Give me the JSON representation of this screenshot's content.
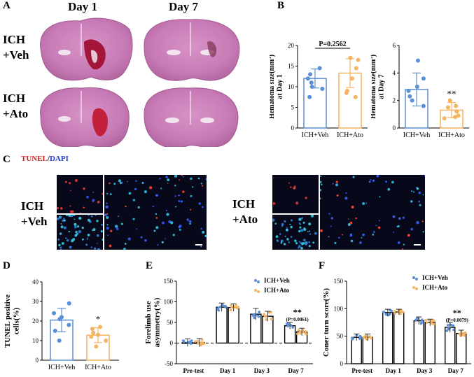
{
  "panels": {
    "A": {
      "label": "A",
      "col_titles": [
        "Day 1",
        "Day 7"
      ],
      "row_labels": [
        [
          "ICH",
          "+Veh"
        ],
        [
          "ICH",
          "+Ato"
        ]
      ]
    },
    "B": {
      "label": "B"
    },
    "C": {
      "label": "C",
      "stain_tunel": "TUNEL",
      "stain_sep": "/",
      "stain_dapi": "DAPI",
      "group_veh": [
        "ICH",
        "+Veh"
      ],
      "group_ato": [
        "ICH",
        "+Ato"
      ]
    },
    "D": {
      "label": "D"
    },
    "E": {
      "label": "E"
    },
    "F": {
      "label": "F"
    }
  },
  "colors": {
    "veh": "#5b8fd6",
    "ato": "#f5b461",
    "tunel_red": "#d21e1e",
    "dapi_blue": "#1e3cd2"
  },
  "chart_data": [
    {
      "id": "B1",
      "type": "bar",
      "ylabel": "Hematoma size(mm³) at Day 1",
      "ylabel_lines": [
        "Hematoma size(mm",
        "3",
        ")",
        "at Day 1"
      ],
      "categories": [
        "ICH+Veh",
        "ICH+Ato"
      ],
      "values": [
        12.0,
        13.3
      ],
      "errors": [
        2.3,
        3.5
      ],
      "points": [
        [
          9.5,
          11,
          12,
          13,
          14.5,
          7.5,
          10
        ],
        [
          7.5,
          9,
          12,
          14.5,
          16.5,
          17,
          8.5
        ]
      ],
      "ylim": [
        0,
        20
      ],
      "yticks": [
        0,
        5,
        10,
        15,
        20
      ],
      "annotation": "P=0.2562"
    },
    {
      "id": "B2",
      "type": "bar",
      "ylabel": "Hematoma size(mm³) at Day 7",
      "ylabel_lines": [
        "Hematoma size(mm",
        "3",
        ")",
        "at Day 7"
      ],
      "categories": [
        "ICH+Veh",
        "ICH+Ato"
      ],
      "values": [
        2.8,
        1.3
      ],
      "errors": [
        1.2,
        0.55
      ],
      "points": [
        [
          4.9,
          3.6,
          3.0,
          2.3,
          1.6,
          2.0,
          2.7
        ],
        [
          2.0,
          1.5,
          1.2,
          0.9,
          0.7,
          1.6,
          0.8
        ]
      ],
      "ylim": [
        0,
        6
      ],
      "yticks": [
        0,
        2,
        4,
        6
      ],
      "annotation": "**"
    },
    {
      "id": "D",
      "type": "bar",
      "ylabel": "TUNEL positive cells(%)",
      "ylabel_lines": [
        "TUNEL positive",
        "cells(%)"
      ],
      "categories": [
        "ICH+Veh",
        "ICH+Ato"
      ],
      "values": [
        20.5,
        12.8
      ],
      "errors": [
        6.0,
        3.8
      ],
      "points": [
        [
          29,
          24,
          21,
          18,
          15,
          10,
          22
        ],
        [
          17,
          14,
          12,
          10,
          7,
          16,
          13
        ]
      ],
      "ylim": [
        0,
        40
      ],
      "yticks": [
        0,
        10,
        20,
        30,
        40
      ],
      "annotation": "*"
    },
    {
      "id": "E",
      "type": "bar",
      "ylabel": "Forelimb use asymmetry(%)",
      "ylabel_lines": [
        "Forelimb use",
        "asymmetry(%)"
      ],
      "categories": [
        "Pre-test",
        "Day 1",
        "Day 3",
        "Day 7"
      ],
      "series": [
        {
          "name": "ICH+Veh",
          "values": [
            1,
            87,
            70,
            42
          ],
          "errors": [
            9,
            10,
            14,
            8
          ]
        },
        {
          "name": "ICH+Ato",
          "values": [
            1,
            86,
            65,
            27
          ],
          "errors": [
            10,
            9,
            12,
            9
          ]
        }
      ],
      "ylim": [
        -50,
        150
      ],
      "yticks": [
        -50,
        0,
        50,
        100,
        150
      ],
      "dashed_zero": true,
      "annotation": "**",
      "annotation_p": "(P=0.0061)"
    },
    {
      "id": "F",
      "type": "bar",
      "ylabel": "Coner turn score(%)",
      "ylabel_lines": [
        "Coner turn score(%)"
      ],
      "categories": [
        "Pre-test",
        "Day 1",
        "Day 3",
        "Day 7"
      ],
      "series": [
        {
          "name": "ICH+Veh",
          "values": [
            48,
            93,
            78,
            66
          ],
          "errors": [
            6,
            6,
            7,
            9
          ]
        },
        {
          "name": "ICH+Ato",
          "values": [
            48,
            94,
            75,
            55
          ],
          "errors": [
            6,
            5,
            6,
            6
          ]
        }
      ],
      "ylim": [
        0,
        150
      ],
      "yticks": [
        0,
        50,
        100,
        150
      ],
      "annotation": "**",
      "annotation_p": "(P=0.0079)"
    }
  ]
}
